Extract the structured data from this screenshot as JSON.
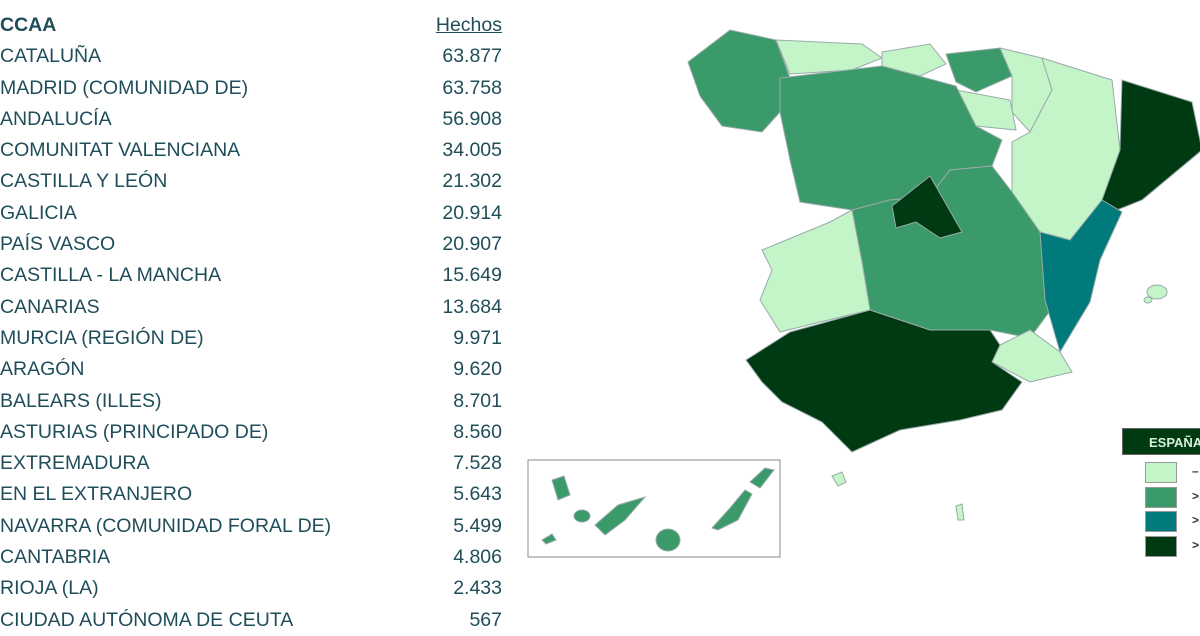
{
  "table": {
    "header": {
      "region": "CCAA",
      "value": "Hechos"
    },
    "rows": [
      {
        "region": "CATALUÑA",
        "value": "63.877"
      },
      {
        "region": "MADRID (COMUNIDAD DE)",
        "value": "63.758"
      },
      {
        "region": "ANDALUCÍA",
        "value": "56.908"
      },
      {
        "region": "COMUNITAT VALENCIANA",
        "value": "34.005"
      },
      {
        "region": "CASTILLA Y LEÓN",
        "value": "21.302"
      },
      {
        "region": "GALICIA",
        "value": "20.914"
      },
      {
        "region": "PAÍS VASCO",
        "value": "20.907"
      },
      {
        "region": "CASTILLA - LA MANCHA",
        "value": "15.649"
      },
      {
        "region": "CANARIAS",
        "value": "13.684"
      },
      {
        "region": "MURCIA (REGIÓN DE)",
        "value": "9.971"
      },
      {
        "region": "ARAGÓN",
        "value": "9.620"
      },
      {
        "region": "BALEARS (ILLES)",
        "value": "8.701"
      },
      {
        "region": "ASTURIAS (PRINCIPADO DE)",
        "value": "8.560"
      },
      {
        "region": "EXTREMADURA",
        "value": "7.528"
      },
      {
        "region": "EN EL EXTRANJERO",
        "value": "5.643"
      },
      {
        "region": "NAVARRA (COMUNIDAD FORAL DE)",
        "value": "5.499"
      },
      {
        "region": "CANTABRIA",
        "value": "4.806"
      },
      {
        "region": "RIOJA (LA)",
        "value": "2.433"
      },
      {
        "region": "CIUDAD AUTÓNOMA DE CEUTA",
        "value": "567"
      }
    ]
  },
  "map": {
    "colors": {
      "class1": "#c4f5c8",
      "class2": "#3a9a6a",
      "class3": "#007a7a",
      "class4": "#003a12"
    },
    "region_class": {
      "Galicia": "class2",
      "Asturias": "class1",
      "Cantabria": "class1",
      "País Vasco": "class2",
      "Navarra": "class1",
      "La Rioja": "class1",
      "Castilla y León": "class2",
      "Aragón": "class1",
      "Cataluña": "class4",
      "Madrid": "class4",
      "Castilla-La Mancha": "class2",
      "Extremadura": "class1",
      "Comunitat Valenciana": "class3",
      "Murcia": "class1",
      "Andalucía": "class4",
      "Baleares": "class1",
      "Canarias": "class2",
      "Ceuta": "class1",
      "Melilla": "class1"
    }
  },
  "legend": {
    "title": "ESPAÑA",
    "items": [
      {
        "color": "#c4f5c8",
        "label": "–"
      },
      {
        "color": "#3a9a6a",
        "label": ">"
      },
      {
        "color": "#007a7a",
        "label": ">"
      },
      {
        "color": "#003a12",
        "label": ">"
      }
    ]
  }
}
